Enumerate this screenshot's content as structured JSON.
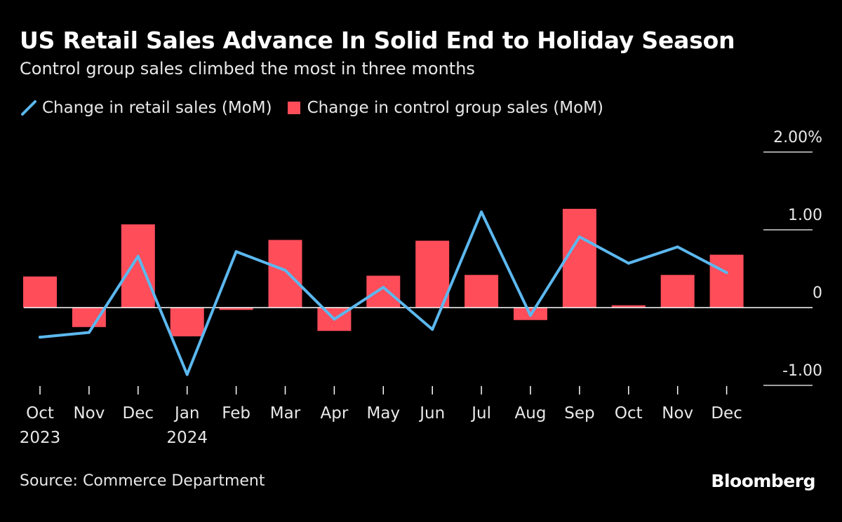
{
  "page": {
    "title": "US Retail Sales Advance In Solid End to Holiday Season",
    "subtitle": "Control group sales climbed the most in three months",
    "source": "Source: Commerce Department",
    "brand": "Bloomberg"
  },
  "colors": {
    "background": "#000000",
    "line": "#5cb8ef",
    "bar": "#ff4d5a",
    "text": "#ffffff"
  },
  "chart_data": {
    "type": "bar",
    "title": "US Retail Sales Advance In Solid End to Holiday Season",
    "subtitle": "Control group sales climbed the most in three months",
    "xlabel": "",
    "ylabel": "",
    "ylim": [
      -1.0,
      2.0
    ],
    "yticks": [
      {
        "value": 2.0,
        "label": "2.00%"
      },
      {
        "value": 1.0,
        "label": "1.00"
      },
      {
        "value": 0.0,
        "label": "0"
      },
      {
        "value": -1.0,
        "label": "-1.00"
      }
    ],
    "categories": [
      "Oct",
      "Nov",
      "Dec",
      "Jan",
      "Feb",
      "Mar",
      "Apr",
      "May",
      "Jun",
      "Jul",
      "Aug",
      "Sep",
      "Oct",
      "Nov",
      "Dec"
    ],
    "year_labels": [
      {
        "index": 0,
        "label": "2023"
      },
      {
        "index": 3,
        "label": "2024"
      }
    ],
    "legend_position": "top-left",
    "series": [
      {
        "name": "Change in retail sales (MoM)",
        "type": "line",
        "values": [
          -0.38,
          -0.32,
          0.66,
          -0.86,
          0.72,
          0.48,
          -0.15,
          0.26,
          -0.28,
          1.23,
          -0.1,
          0.91,
          0.57,
          0.78,
          0.45
        ]
      },
      {
        "name": "Change in control group sales (MoM)",
        "type": "bar",
        "values": [
          0.4,
          -0.25,
          1.07,
          -0.37,
          -0.03,
          0.87,
          -0.3,
          0.41,
          0.86,
          0.42,
          -0.16,
          1.27,
          0.03,
          0.42,
          0.68
        ]
      }
    ]
  }
}
